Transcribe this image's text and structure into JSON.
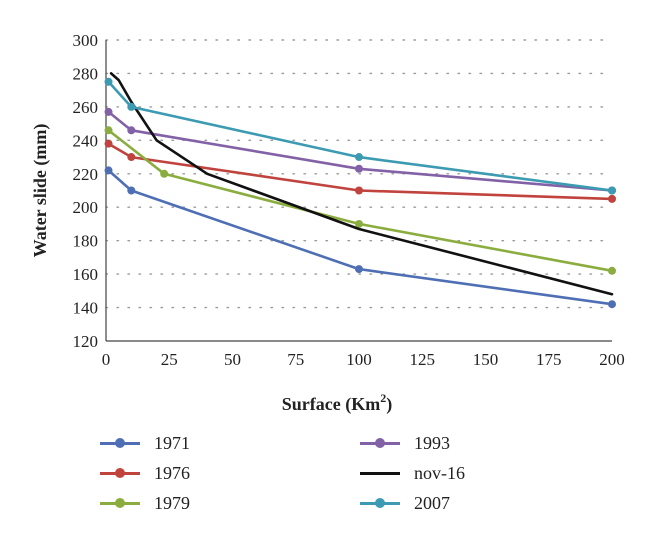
{
  "chart_data": {
    "type": "line",
    "xlabel": "Surface (Km",
    "xlabel_sup": "2",
    "xlabel_close": ")",
    "ylabel": "Water slide (mm)",
    "xlim": [
      0,
      200
    ],
    "ylim": [
      120,
      300
    ],
    "xticks": [
      0,
      25,
      50,
      75,
      100,
      125,
      150,
      175,
      200
    ],
    "yticks": [
      120,
      140,
      160,
      180,
      200,
      220,
      240,
      260,
      280,
      300
    ],
    "grid": "horizontal dotted",
    "legend_position": "bottom",
    "series": [
      {
        "name": "1971",
        "color": "#4f6fb5",
        "markers": true,
        "points": [
          [
            1,
            222
          ],
          [
            10,
            210
          ],
          [
            100,
            163
          ],
          [
            200,
            142
          ]
        ]
      },
      {
        "name": "1976",
        "color": "#c0433e",
        "markers": true,
        "points": [
          [
            1,
            238
          ],
          [
            10,
            230
          ],
          [
            100,
            210
          ],
          [
            200,
            205
          ]
        ]
      },
      {
        "name": "1979",
        "color": "#8bad3f",
        "markers": true,
        "points": [
          [
            1,
            246
          ],
          [
            23,
            220
          ],
          [
            100,
            190
          ],
          [
            200,
            162
          ]
        ]
      },
      {
        "name": "1993",
        "color": "#8361a6",
        "markers": true,
        "points": [
          [
            1,
            257
          ],
          [
            10,
            246
          ],
          [
            100,
            223
          ],
          [
            200,
            210
          ]
        ]
      },
      {
        "name": "nov-16",
        "color": "#111111",
        "markers": false,
        "points": [
          [
            2,
            280
          ],
          [
            5,
            276
          ],
          [
            10,
            263
          ],
          [
            20,
            240
          ],
          [
            40,
            220
          ],
          [
            100,
            187
          ],
          [
            200,
            148
          ]
        ]
      },
      {
        "name": "2007",
        "color": "#3c9bb2",
        "markers": true,
        "points": [
          [
            1,
            275
          ],
          [
            10,
            260
          ],
          [
            100,
            230
          ],
          [
            200,
            210
          ]
        ]
      }
    ]
  }
}
